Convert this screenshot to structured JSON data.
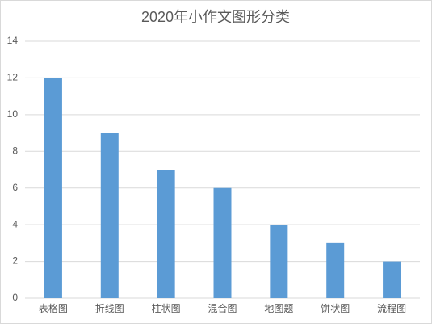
{
  "chart_data": {
    "type": "bar",
    "title": "2020年小作文图形分类",
    "categories": [
      "表格图",
      "折线图",
      "柱状图",
      "混合图",
      "地图题",
      "饼状图",
      "流程图"
    ],
    "values": [
      12,
      9,
      7,
      6,
      4,
      3,
      2
    ],
    "color": "#5b9bd5",
    "ylim": [
      0,
      14
    ],
    "yticks": [
      0,
      2,
      4,
      6,
      8,
      10,
      12,
      14
    ],
    "grid": true
  }
}
